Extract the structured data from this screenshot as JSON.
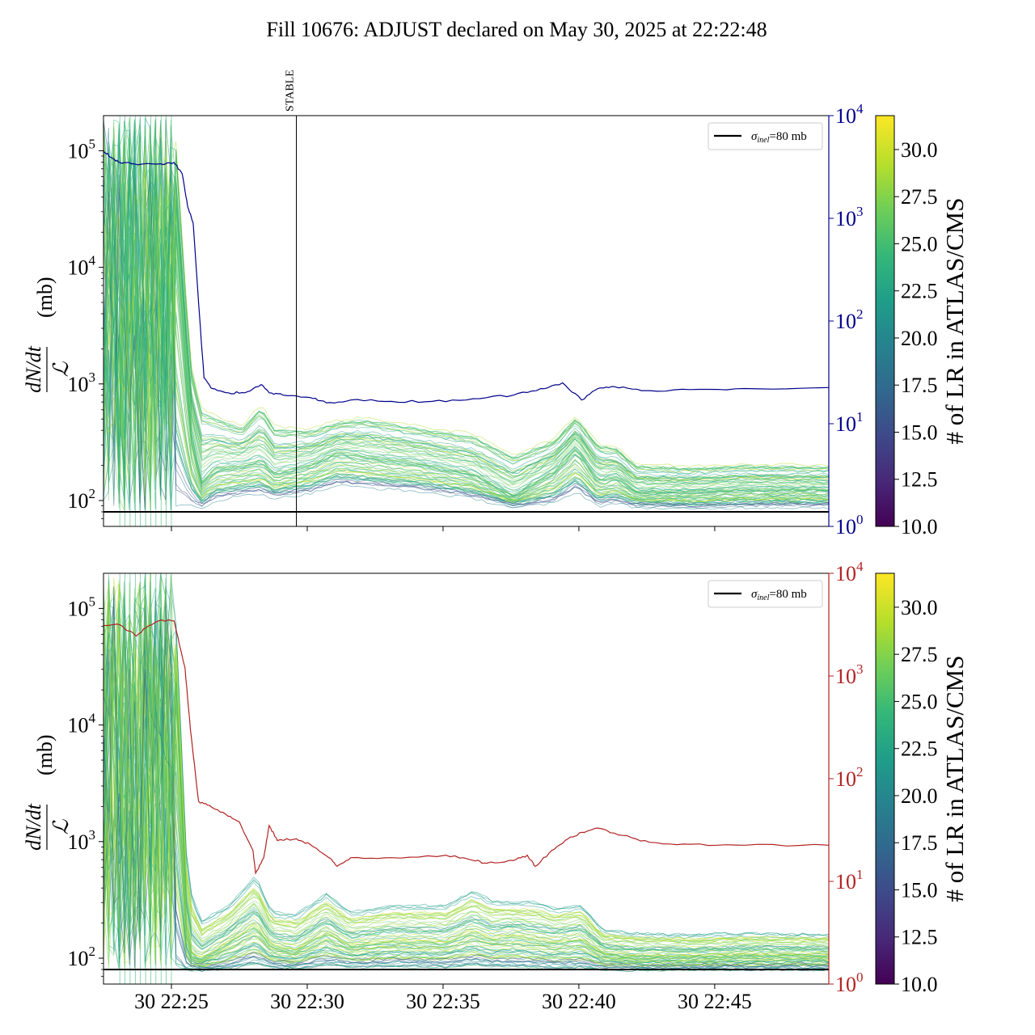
{
  "title": "Fill 10676: ADJUST declared on May 30, 2025 at 22:22:48",
  "chart_data": [
    {
      "type": "line",
      "panel": "top",
      "ylabel_fraction_numerator": "dN/dt",
      "ylabel_fraction_denominator": "ℒ",
      "ylabel_unit": "(mb)",
      "yscale": "log",
      "ylim": [
        60,
        200000
      ],
      "yticks": [
        {
          "base": "10",
          "exp": "2",
          "value": 100
        },
        {
          "base": "10",
          "exp": "3",
          "value": 1000
        },
        {
          "base": "10",
          "exp": "4",
          "value": 10000
        },
        {
          "base": "10",
          "exp": "5",
          "value": 100000
        }
      ],
      "xlim_minutes": [
        22.4,
        49.1
      ],
      "secondary_axis": {
        "scale": "log",
        "ylim": [
          1,
          10000
        ],
        "color": "#00008b",
        "yticks": [
          {
            "base": "10",
            "exp": "0",
            "value": 1
          },
          {
            "base": "10",
            "exp": "1",
            "value": 10
          },
          {
            "base": "10",
            "exp": "2",
            "value": 100
          },
          {
            "base": "10",
            "exp": "3",
            "value": 1000
          },
          {
            "base": "10",
            "exp": "4",
            "value": 10000
          }
        ],
        "series_points": [
          [
            22.4,
            4500
          ],
          [
            22.7,
            3900
          ],
          [
            23.0,
            3500
          ],
          [
            23.5,
            3400
          ],
          [
            24.5,
            3400
          ],
          [
            25.0,
            3500
          ],
          [
            25.3,
            2700
          ],
          [
            25.5,
            1300
          ],
          [
            25.7,
            900
          ],
          [
            25.9,
            150
          ],
          [
            26.1,
            28
          ],
          [
            26.4,
            22
          ],
          [
            27.0,
            20
          ],
          [
            27.6,
            20
          ],
          [
            28.2,
            24
          ],
          [
            28.5,
            20
          ],
          [
            29.0,
            19
          ],
          [
            30.0,
            18
          ],
          [
            30.6,
            16
          ],
          [
            31.5,
            17
          ],
          [
            33.0,
            16.5
          ],
          [
            34.5,
            16.5
          ],
          [
            36.0,
            17.5
          ],
          [
            37.5,
            19
          ],
          [
            38.5,
            22
          ],
          [
            39.3,
            25
          ],
          [
            40.0,
            17
          ],
          [
            40.6,
            22
          ],
          [
            41.2,
            23
          ],
          [
            42.2,
            21
          ],
          [
            44.0,
            21.5
          ],
          [
            46.0,
            22
          ],
          [
            49.1,
            22.5
          ]
        ]
      },
      "vline": {
        "x_minutes": 29.5,
        "label": "STABLE"
      },
      "hline": {
        "value": 80
      },
      "legend": {
        "location": "upper right",
        "label_prefix": "σ",
        "label_sub": "inel",
        "label_suffix": "=80 mb"
      },
      "band_envelope": {
        "x": [
          22.4,
          25.0,
          25.6,
          26.0,
          26.5,
          27.5,
          28.2,
          28.7,
          30.0,
          31.0,
          32.0,
          34.0,
          36.0,
          37.5,
          39.0,
          39.8,
          40.6,
          41.3,
          42.0,
          44.0,
          46.0,
          49.1
        ],
        "median": [
          30000,
          30000,
          400,
          140,
          190,
          200,
          220,
          170,
          200,
          260,
          240,
          210,
          170,
          110,
          180,
          280,
          150,
          160,
          120,
          120,
          125,
          125
        ],
        "low": [
          80,
          80,
          90,
          85,
          100,
          110,
          115,
          105,
          115,
          135,
          130,
          120,
          105,
          88,
          95,
          120,
          90,
          95,
          88,
          85,
          88,
          88
        ],
        "high": [
          200000,
          200000,
          1500,
          600,
          520,
          420,
          650,
          420,
          400,
          470,
          500,
          420,
          360,
          240,
          330,
          520,
          300,
          280,
          200,
          190,
          200,
          195
        ]
      }
    },
    {
      "type": "line",
      "panel": "bottom",
      "ylabel_fraction_numerator": "dN/dt",
      "ylabel_fraction_denominator": "ℒ",
      "ylabel_unit": "(mb)",
      "yscale": "log",
      "ylim": [
        60,
        200000
      ],
      "yticks": [
        {
          "base": "10",
          "exp": "2",
          "value": 100
        },
        {
          "base": "10",
          "exp": "3",
          "value": 1000
        },
        {
          "base": "10",
          "exp": "4",
          "value": 10000
        },
        {
          "base": "10",
          "exp": "5",
          "value": 100000
        }
      ],
      "xlim_minutes": [
        22.4,
        49.1
      ],
      "xticks": [
        {
          "label": "30 22:25",
          "minute": 24.9
        },
        {
          "label": "30 22:30",
          "minute": 29.9
        },
        {
          "label": "30 22:35",
          "minute": 34.9
        },
        {
          "label": "30 22:40",
          "minute": 39.9
        },
        {
          "label": "30 22:45",
          "minute": 44.9
        }
      ],
      "secondary_axis": {
        "scale": "log",
        "ylim": [
          1,
          10000
        ],
        "color": "#b22222",
        "yticks": [
          {
            "base": "10",
            "exp": "0",
            "value": 1
          },
          {
            "base": "10",
            "exp": "1",
            "value": 10
          },
          {
            "base": "10",
            "exp": "2",
            "value": 100
          },
          {
            "base": "10",
            "exp": "3",
            "value": 1000
          },
          {
            "base": "10",
            "exp": "4",
            "value": 10000
          }
        ],
        "series_points": [
          [
            22.4,
            3100
          ],
          [
            23.0,
            3150
          ],
          [
            23.6,
            2450
          ],
          [
            24.0,
            3000
          ],
          [
            24.5,
            3500
          ],
          [
            25.0,
            3450
          ],
          [
            25.4,
            1200
          ],
          [
            25.6,
            300
          ],
          [
            25.9,
            60
          ],
          [
            26.3,
            55
          ],
          [
            26.9,
            45
          ],
          [
            27.4,
            38
          ],
          [
            27.9,
            20
          ],
          [
            28.0,
            12
          ],
          [
            28.3,
            17
          ],
          [
            28.5,
            35
          ],
          [
            28.8,
            25
          ],
          [
            29.5,
            26
          ],
          [
            30.0,
            23
          ],
          [
            30.7,
            17
          ],
          [
            31.0,
            14
          ],
          [
            31.5,
            17
          ],
          [
            33.0,
            17
          ],
          [
            35.0,
            18
          ],
          [
            36.0,
            16
          ],
          [
            36.5,
            15
          ],
          [
            37.5,
            16
          ],
          [
            38.0,
            18
          ],
          [
            38.3,
            14
          ],
          [
            38.9,
            20
          ],
          [
            39.5,
            26
          ],
          [
            40.0,
            30
          ],
          [
            40.6,
            33
          ],
          [
            41.5,
            28
          ],
          [
            42.5,
            24
          ],
          [
            44.0,
            23
          ],
          [
            46.0,
            22.5
          ],
          [
            49.1,
            22.5
          ]
        ]
      },
      "hline": {
        "value": 80
      },
      "legend": {
        "location": "upper right",
        "label_prefix": "σ",
        "label_sub": "inel",
        "label_suffix": "=80 mb"
      },
      "band_envelope": {
        "x": [
          22.4,
          25.0,
          25.5,
          26.0,
          27.0,
          28.0,
          28.6,
          29.5,
          30.6,
          31.5,
          33.0,
          35.0,
          36.0,
          36.7,
          37.5,
          38.3,
          39.0,
          40.0,
          40.8,
          42.0,
          44.0,
          46.0,
          49.1
        ],
        "median": [
          30000,
          30000,
          120,
          100,
          140,
          200,
          130,
          120,
          170,
          130,
          145,
          140,
          175,
          150,
          160,
          150,
          140,
          150,
          110,
          105,
          105,
          108,
          108
        ],
        "low": [
          80,
          80,
          80,
          80,
          82,
          90,
          84,
          82,
          88,
          85,
          86,
          85,
          88,
          86,
          85,
          84,
          83,
          84,
          81,
          80,
          81,
          81,
          81
        ],
        "high": [
          200000,
          200000,
          500,
          220,
          300,
          540,
          260,
          250,
          380,
          260,
          300,
          300,
          400,
          330,
          320,
          320,
          280,
          300,
          180,
          170,
          165,
          170,
          165
        ]
      }
    }
  ],
  "colorbar": {
    "label": "# of LR in ATLAS/CMS",
    "colormap": "viridis",
    "range": [
      10.0,
      31.8
    ],
    "ticks": [
      "10.0",
      "12.5",
      "15.0",
      "17.5",
      "20.0",
      "22.5",
      "25.0",
      "27.5",
      "30.0"
    ],
    "colors": [
      "#440154",
      "#482878",
      "#3e4989",
      "#31688e",
      "#26828e",
      "#1f9e89",
      "#35b779",
      "#6ece58",
      "#b5de2b",
      "#fde725"
    ]
  }
}
